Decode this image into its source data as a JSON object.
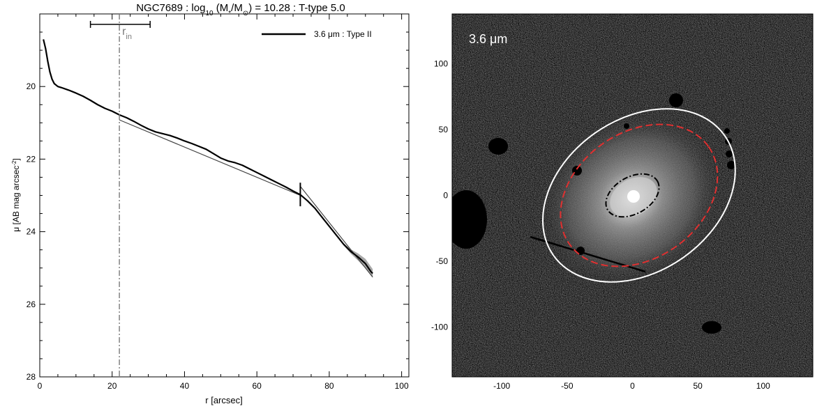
{
  "chart_data": [
    {
      "type": "line",
      "title": {
        "galaxy": "NGC7689",
        "log_part": " : log",
        "log_sub": "10",
        "mass_open": " (M",
        "mass_sub_star": "*",
        "mass_slash": "/M",
        "mass_sub_sun": "⊙",
        "mass_tail": ") = 10.28 : T-type 5.0"
      },
      "xlabel": "r [arcsec]",
      "ylabel_main": "μ [AB mag arcsec",
      "ylabel_sup": "-2",
      "ylabel_close": "]",
      "xlim": [
        0,
        102
      ],
      "ylim": [
        28,
        18.0
      ],
      "y_inverted": true,
      "x_ticks": [
        0,
        20,
        40,
        60,
        80,
        100
      ],
      "y_ticks": [
        20,
        22,
        24,
        26,
        28
      ],
      "legend": {
        "label": "3.6 μm : Type II",
        "placement": "top-right"
      },
      "r_in": {
        "label_main": "r",
        "label_sub": "in",
        "value": 22.0,
        "bar_range": [
          14.0,
          30.5
        ],
        "color": "#7a7a7a"
      },
      "break_marker": {
        "x": 72.0,
        "y_range": [
          22.65,
          23.3
        ]
      },
      "series": [
        {
          "name": "3.6 μm : Type II",
          "color": "#000000",
          "points": [
            [
              1.0,
              18.7
            ],
            [
              1.6,
              18.95
            ],
            [
              2.2,
              19.3
            ],
            [
              2.8,
              19.6
            ],
            [
              3.4,
              19.8
            ],
            [
              4.0,
              19.92
            ],
            [
              5.0,
              20.0
            ],
            [
              6.0,
              20.03
            ],
            [
              8.0,
              20.1
            ],
            [
              10.0,
              20.18
            ],
            [
              12.0,
              20.27
            ],
            [
              14.0,
              20.38
            ],
            [
              16.0,
              20.5
            ],
            [
              18.0,
              20.6
            ],
            [
              20.0,
              20.68
            ],
            [
              22.0,
              20.78
            ],
            [
              24.0,
              20.86
            ],
            [
              26.0,
              20.96
            ],
            [
              28.0,
              21.07
            ],
            [
              30.0,
              21.17
            ],
            [
              32.0,
              21.25
            ],
            [
              34.0,
              21.3
            ],
            [
              36.0,
              21.35
            ],
            [
              38.0,
              21.42
            ],
            [
              40.0,
              21.5
            ],
            [
              42.0,
              21.57
            ],
            [
              44.0,
              21.65
            ],
            [
              46.0,
              21.73
            ],
            [
              48.0,
              21.85
            ],
            [
              50.0,
              21.97
            ],
            [
              52.0,
              22.05
            ],
            [
              54.0,
              22.1
            ],
            [
              56.0,
              22.17
            ],
            [
              58.0,
              22.27
            ],
            [
              60.0,
              22.37
            ],
            [
              62.0,
              22.47
            ],
            [
              64.0,
              22.57
            ],
            [
              66.0,
              22.67
            ],
            [
              68.0,
              22.77
            ],
            [
              70.0,
              22.88
            ],
            [
              72.0,
              22.98
            ],
            [
              74.0,
              23.15
            ],
            [
              76.0,
              23.35
            ],
            [
              78.0,
              23.6
            ],
            [
              80.0,
              23.85
            ],
            [
              82.0,
              24.1
            ],
            [
              84.0,
              24.35
            ],
            [
              86.0,
              24.55
            ],
            [
              88.0,
              24.7
            ],
            [
              90.0,
              24.88
            ],
            [
              91.5,
              25.1
            ],
            [
              92.0,
              25.15
            ]
          ],
          "uncertainty_half_width": [
            [
              84.0,
              0.03
            ],
            [
              86.0,
              0.06
            ],
            [
              88.0,
              0.1
            ],
            [
              90.0,
              0.13
            ],
            [
              92.0,
              0.12
            ]
          ]
        }
      ],
      "fits": [
        {
          "name": "inner",
          "color": "#444444",
          "x": [
            22.0,
            72.0
          ],
          "y": [
            20.92,
            23.0
          ]
        },
        {
          "name": "outer",
          "color": "#444444",
          "x": [
            72.0,
            92.0
          ],
          "y": [
            22.75,
            25.25
          ]
        }
      ]
    },
    {
      "type": "heatmap",
      "band_label": "3.6 μm",
      "xlim": [
        -138,
        138
      ],
      "ylim": [
        -138,
        138
      ],
      "x_ticks": [
        -100,
        -50,
        0,
        50,
        100
      ],
      "y_ticks": [
        -100,
        -50,
        0,
        50,
        100
      ],
      "ellipses": [
        {
          "name": "outer-white",
          "color": "#ffffff",
          "style": "solid",
          "cx": 5,
          "cy": 0,
          "rx": 80,
          "ry": 58,
          "angle_deg": 35
        },
        {
          "name": "break-red",
          "color": "#e03030",
          "style": "dashed",
          "cx": 5,
          "cy": 0,
          "rx": 65,
          "ry": 48,
          "angle_deg": 35
        },
        {
          "name": "bar-black",
          "color": "#000000",
          "style": "dash-dot",
          "cx": 0,
          "cy": 0,
          "rx": 22,
          "ry": 14,
          "angle_deg": 30
        }
      ]
    }
  ]
}
